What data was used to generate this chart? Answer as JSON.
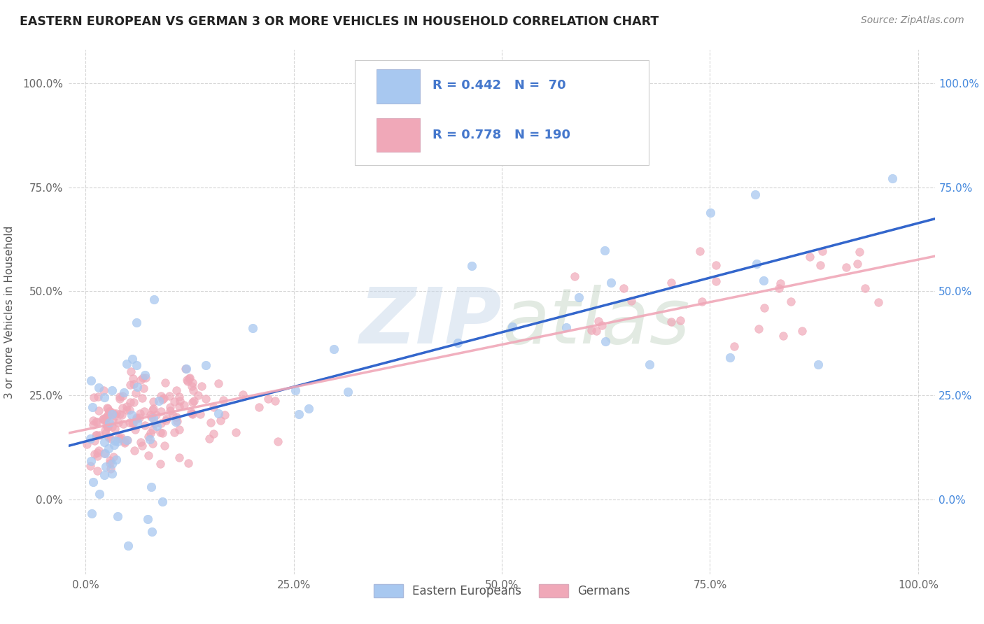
{
  "title": "EASTERN EUROPEAN VS GERMAN 3 OR MORE VEHICLES IN HOUSEHOLD CORRELATION CHART",
  "source": "Source: ZipAtlas.com",
  "ylabel": "3 or more Vehicles in Household",
  "xlim": [
    -0.02,
    1.02
  ],
  "ylim": [
    -0.18,
    1.08
  ],
  "xticks": [
    0.0,
    0.25,
    0.5,
    0.75,
    1.0
  ],
  "xtick_labels": [
    "0.0%",
    "25.0%",
    "50.0%",
    "75.0%",
    "100.0%"
  ],
  "yticks": [
    0.0,
    0.25,
    0.5,
    0.75,
    1.0
  ],
  "ytick_labels": [
    "0.0%",
    "25.0%",
    "50.0%",
    "75.0%",
    "100.0%"
  ],
  "blue_color": "#a8c8f0",
  "pink_color": "#f0a8b8",
  "blue_line_color": "#3366cc",
  "pink_line_color": "#cc3366",
  "R_blue": 0.442,
  "N_blue": 70,
  "R_pink": 0.778,
  "N_pink": 190,
  "legend_label_blue": "Eastern Europeans",
  "legend_label_pink": "Germans",
  "grid_color": "#cccccc",
  "background_color": "#ffffff",
  "watermark_color": "#dde8f0",
  "text_color": "#4477cc",
  "title_color": "#222222",
  "source_color": "#888888",
  "right_tick_color": "#4488dd"
}
